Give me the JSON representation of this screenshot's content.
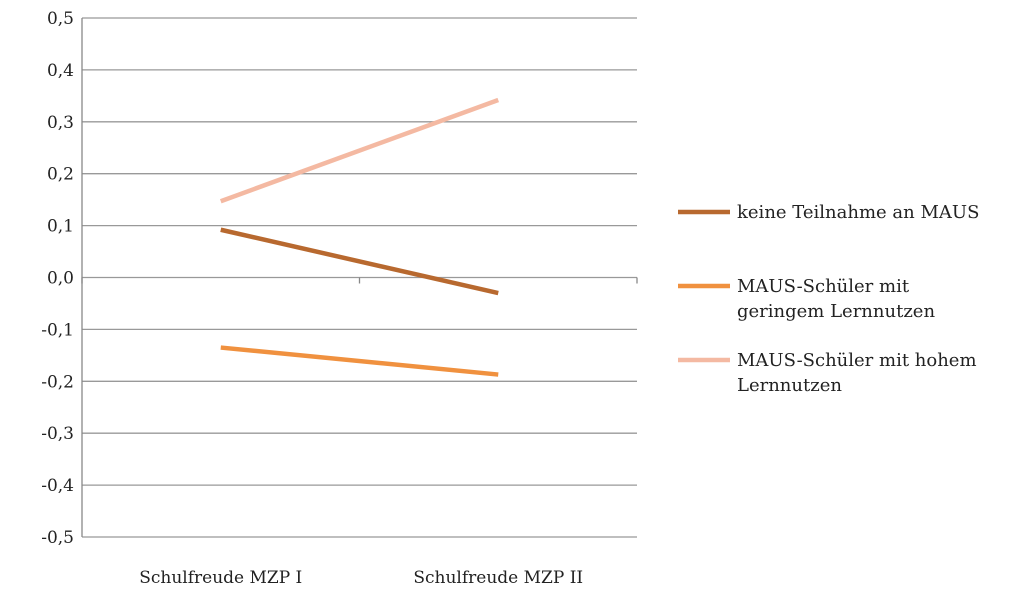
{
  "chart_data": {
    "type": "line",
    "title": "",
    "xlabel": "",
    "ylabel": "",
    "categories": [
      "Schulfreude MZP I",
      "Schulfreude MZP II"
    ],
    "ylim": [
      -0.5,
      0.5
    ],
    "yticks": [
      0.5,
      0.4,
      0.3,
      0.2,
      0.1,
      0.0,
      -0.1,
      -0.2,
      -0.3,
      -0.4,
      -0.5
    ],
    "ytick_labels": [
      "0,5",
      "0,4",
      "0,3",
      "0,2",
      "0,1",
      "0,0",
      "-0,1",
      "-0,2",
      "-0,3",
      "-0,4",
      "-0,5"
    ],
    "grid": true,
    "legend_position": "right",
    "series": [
      {
        "name": "keine Teilnahme an MAUS",
        "legend_lines": [
          "keine Teilnahme an MAUS"
        ],
        "color": "#b8692f",
        "values": [
          0.092,
          -0.03
        ]
      },
      {
        "name": "MAUS-Schüler mit geringem Lernnutzen",
        "legend_lines": [
          "MAUS-Schüler mit",
          "geringem Lernnutzen"
        ],
        "color": "#f0913f",
        "values": [
          -0.135,
          -0.187
        ]
      },
      {
        "name": "MAUS-Schüler mit hohem Lernnutzen",
        "legend_lines": [
          "MAUS-Schüler mit hohem",
          "Lernnutzen"
        ],
        "color": "#f4b9a2",
        "values": [
          0.147,
          0.342
        ]
      }
    ]
  }
}
